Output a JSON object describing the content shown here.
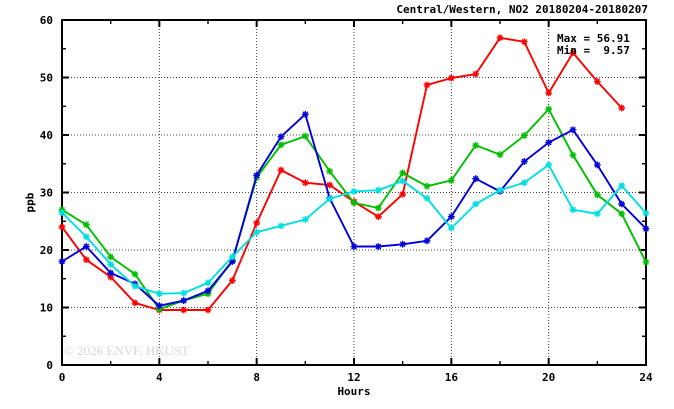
{
  "title": "Central/Western, NO2 20180204-20180207",
  "annotations": {
    "max_label": "Max = 56.91",
    "min_label": "Min =  9.57"
  },
  "watermark": "© 2026 ENVF, HKUST",
  "colors": {
    "red": "#ff0000",
    "green": "#00c000",
    "blue": "#0000dd",
    "cyan": "#00e0e0",
    "grid": "#444444",
    "border": "#000000",
    "watermark_gray": "#d8d8d8"
  },
  "chart_data": {
    "type": "line",
    "title": "Central/Western, NO2 20180204-20180207",
    "xlabel": "Hours",
    "ylabel": "ppb",
    "xlim": [
      0,
      24
    ],
    "ylim": [
      0,
      60
    ],
    "x_major_ticks": [
      0,
      4,
      8,
      12,
      16,
      20,
      24
    ],
    "x_minor_step": 2,
    "y_major_ticks": [
      0,
      10,
      20,
      30,
      40,
      50,
      60
    ],
    "y_minor_step": 5,
    "grid": true,
    "legend_position": "none",
    "max_value": 56.91,
    "min_value": 9.57,
    "x": [
      0,
      1,
      2,
      3,
      4,
      5,
      6,
      7,
      8,
      9,
      10,
      11,
      12,
      13,
      14,
      15,
      16,
      17,
      18,
      19,
      20,
      21,
      22,
      23,
      24
    ],
    "series": [
      {
        "name": "red",
        "color": "#ff0000",
        "values": [
          24.0,
          18.3,
          15.3,
          10.8,
          9.57,
          9.57,
          9.57,
          14.7,
          24.7,
          33.9,
          31.7,
          31.3,
          28.4,
          25.8,
          29.7,
          48.7,
          49.9,
          50.6,
          56.91,
          56.2,
          47.3,
          54.3,
          49.3,
          44.7,
          null
        ]
      },
      {
        "name": "green",
        "color": "#00c000",
        "values": [
          27.0,
          24.4,
          18.8,
          15.8,
          9.7,
          11.2,
          12.4,
          18.2,
          32.6,
          38.3,
          39.8,
          33.7,
          28.2,
          27.3,
          33.4,
          31.1,
          32.1,
          38.2,
          36.6,
          39.9,
          44.5,
          36.5,
          29.6,
          26.3,
          17.9
        ]
      },
      {
        "name": "blue",
        "color": "#0000dd",
        "values": [
          18.0,
          20.6,
          16.0,
          14.1,
          10.3,
          11.2,
          12.9,
          18.0,
          33.0,
          39.7,
          43.6,
          29.0,
          20.6,
          20.6,
          21.0,
          21.6,
          25.8,
          32.4,
          30.2,
          35.4,
          38.7,
          40.9,
          34.8,
          28.0,
          23.7
        ]
      },
      {
        "name": "cyan",
        "color": "#00e0e0",
        "values": [
          26.5,
          22.3,
          17.5,
          13.7,
          12.4,
          12.5,
          14.3,
          18.8,
          23.1,
          24.2,
          25.3,
          28.9,
          30.2,
          30.4,
          32.0,
          29.0,
          23.8,
          28.0,
          30.4,
          31.7,
          34.8,
          27.0,
          26.3,
          31.2,
          26.4
        ]
      }
    ]
  }
}
